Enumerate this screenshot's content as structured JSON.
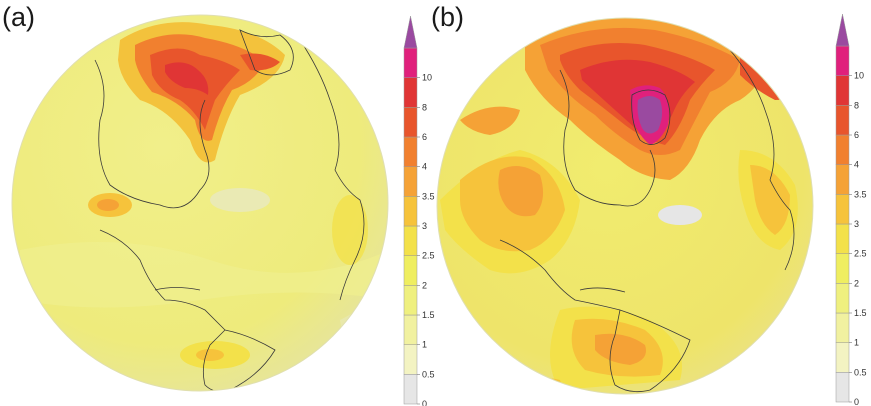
{
  "panels": [
    {
      "label": "(a)"
    },
    {
      "label": "(b)"
    }
  ],
  "colorbar": {
    "ticks": [
      "0",
      "0.5",
      "1",
      "1.5",
      "2",
      "2.5",
      "3",
      "3.5",
      "4",
      "6",
      "8",
      "10"
    ],
    "colors": [
      "#e6e6e6",
      "#f3f3c2",
      "#f1f1a0",
      "#eff07f",
      "#efee60",
      "#f3e14a",
      "#f6c33b",
      "#f5a236",
      "#f1802f",
      "#e8552c",
      "#e03535",
      "#e0207c",
      "#9a4aa0"
    ]
  }
}
